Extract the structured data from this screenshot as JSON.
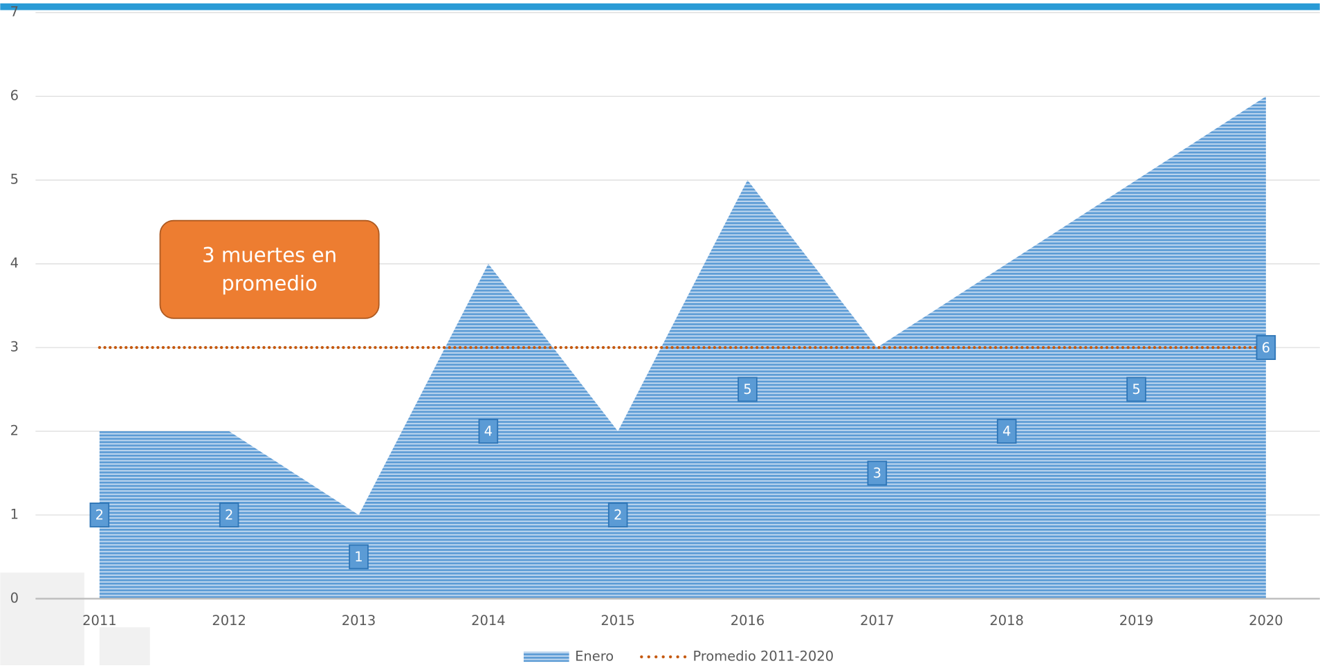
{
  "chart_data": {
    "type": "area",
    "categories": [
      "2011",
      "2012",
      "2013",
      "2014",
      "2015",
      "2016",
      "2017",
      "2018",
      "2019",
      "2020"
    ],
    "series": [
      {
        "name": "Enero",
        "color": "#5b9bd5",
        "values": [
          2,
          2,
          1,
          4,
          2,
          5,
          3,
          4,
          5,
          6
        ]
      },
      {
        "name": "Promedio 2011-2020",
        "color": "#c55a11",
        "values": [
          3,
          3,
          3,
          3,
          3,
          3,
          3,
          3,
          3,
          3
        ]
      }
    ],
    "ylim": [
      0,
      7
    ],
    "yticks": [
      0,
      1,
      2,
      3,
      4,
      5,
      6,
      7
    ],
    "grid": true,
    "annotation": "3 muertes en promedio",
    "annotation_color": "#ed7d31",
    "legend": "bottom"
  }
}
